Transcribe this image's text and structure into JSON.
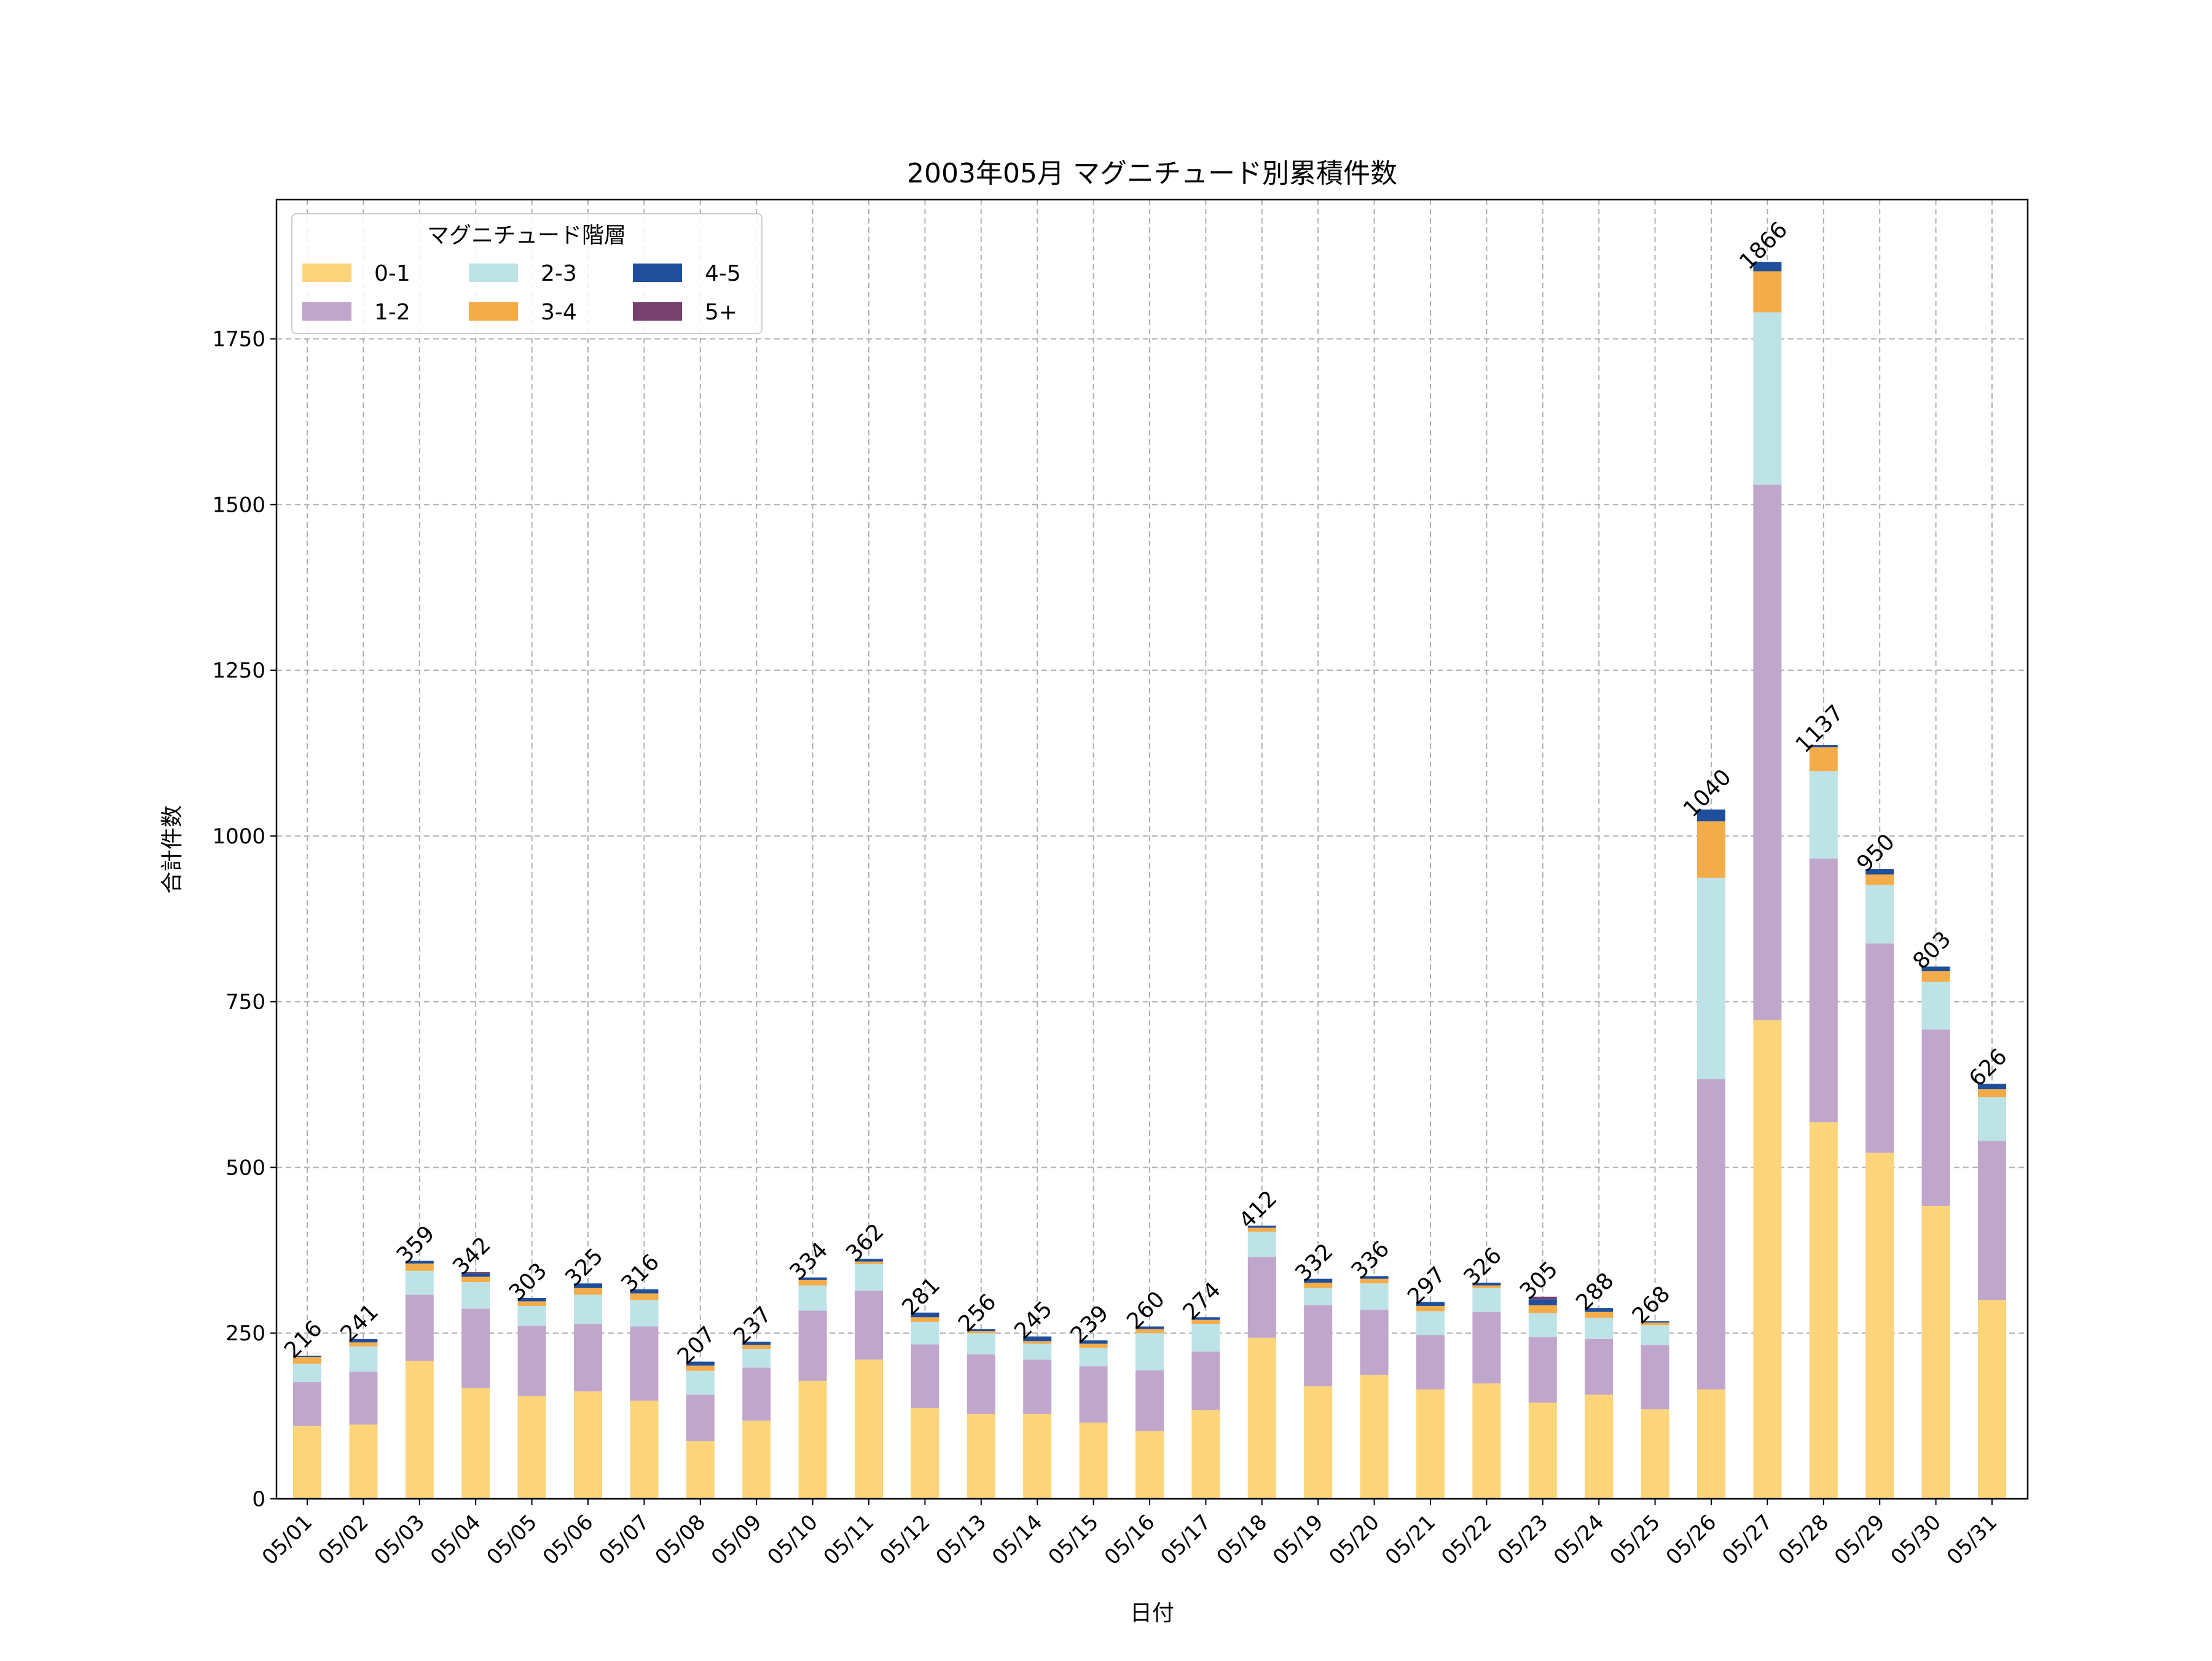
{
  "chart_data": {
    "type": "bar",
    "stacked": true,
    "title": "2003年05月 マグニチュード別累積件数",
    "xlabel": "日付",
    "ylabel": "合計件数",
    "ylim": [
      0,
      1960
    ],
    "yticks": [
      0,
      250,
      500,
      750,
      1000,
      1250,
      1500,
      1750
    ],
    "grid": true,
    "legend": {
      "title": "マグニチュード階層",
      "placement": "top-left",
      "columns": 3
    },
    "categories": [
      "05/01",
      "05/02",
      "05/03",
      "05/04",
      "05/05",
      "05/06",
      "05/07",
      "05/08",
      "05/09",
      "05/10",
      "05/11",
      "05/12",
      "05/13",
      "05/14",
      "05/15",
      "05/16",
      "05/17",
      "05/18",
      "05/19",
      "05/20",
      "05/21",
      "05/22",
      "05/23",
      "05/24",
      "05/25",
      "05/26",
      "05/27",
      "05/28",
      "05/29",
      "05/30",
      "05/31"
    ],
    "totals": [
      216,
      241,
      359,
      342,
      303,
      325,
      316,
      207,
      237,
      334,
      362,
      281,
      256,
      245,
      239,
      260,
      274,
      412,
      332,
      336,
      297,
      326,
      305,
      288,
      268,
      1040,
      1866,
      1137,
      950,
      803,
      626
    ],
    "series": [
      {
        "name": "0-1",
        "color": "#FCD57A",
        "values": [
          110,
          112,
          208,
          167,
          155,
          162,
          148,
          87,
          118,
          178,
          210,
          137,
          128,
          128,
          115,
          102,
          134,
          243,
          170,
          187,
          165,
          174,
          145,
          157,
          135,
          165,
          722,
          568,
          522,
          442,
          300
        ]
      },
      {
        "name": "1-2",
        "color": "#C1A6CB",
        "values": [
          66,
          80,
          100,
          120,
          106,
          102,
          112,
          70,
          80,
          106,
          104,
          96,
          90,
          82,
          85,
          92,
          88,
          122,
          122,
          98,
          82,
          108,
          99,
          84,
          97,
          468,
          808,
          398,
          316,
          266,
          240
        ]
      },
      {
        "name": "2-3",
        "color": "#BDE3E6",
        "values": [
          28,
          38,
          36,
          40,
          30,
          44,
          40,
          36,
          28,
          38,
          40,
          34,
          32,
          24,
          28,
          56,
          42,
          38,
          26,
          40,
          36,
          36,
          36,
          32,
          30,
          304,
          260,
          132,
          88,
          72,
          66
        ]
      },
      {
        "name": "3-4",
        "color": "#F4AC4A",
        "values": [
          10,
          6,
          11,
          8,
          7,
          10,
          10,
          8,
          6,
          8,
          4,
          7,
          3,
          4,
          6,
          6,
          6,
          6,
          8,
          7,
          8,
          4,
          12,
          9,
          4,
          85,
          62,
          36,
          16,
          16,
          12
        ]
      },
      {
        "name": "4-5",
        "color": "#1F4E9A",
        "values": [
          2,
          5,
          4,
          5,
          5,
          7,
          6,
          6,
          5,
          4,
          4,
          7,
          3,
          7,
          5,
          4,
          4,
          3,
          6,
          4,
          6,
          4,
          9,
          6,
          2,
          18,
          14,
          3,
          8,
          7,
          8
        ]
      },
      {
        "name": "5+",
        "color": "#76416E",
        "values": [
          0,
          0,
          0,
          2,
          0,
          0,
          0,
          0,
          0,
          0,
          0,
          0,
          0,
          0,
          0,
          0,
          0,
          0,
          0,
          0,
          0,
          0,
          4,
          0,
          0,
          0,
          0,
          0,
          0,
          0,
          0
        ]
      }
    ]
  }
}
